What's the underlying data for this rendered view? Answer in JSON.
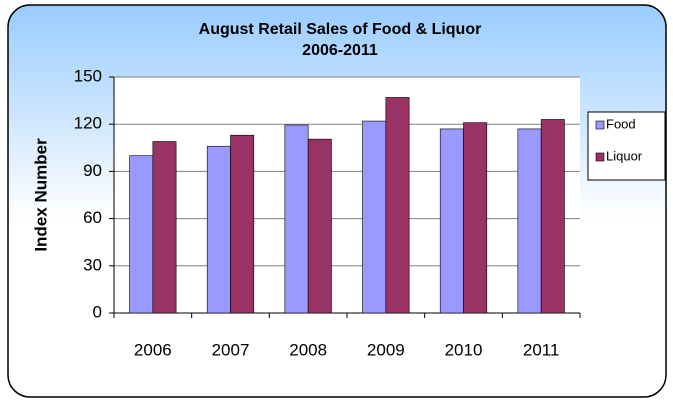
{
  "chart_data": {
    "type": "bar",
    "title": "August Retail Sales of Food & Liquor",
    "subtitle": "2006-2011",
    "y_label": "Index Number",
    "categories": [
      "2006",
      "2007",
      "2008",
      "2009",
      "2010",
      "2011"
    ],
    "series": [
      {
        "name": "Food",
        "color": "#9999ff",
        "values": [
          100,
          106,
          119.5,
          122,
          117,
          117
        ]
      },
      {
        "name": "Liquor",
        "color": "#993366",
        "values": [
          109,
          113,
          110.5,
          137,
          121,
          123
        ]
      }
    ],
    "ylim": [
      0,
      150
    ],
    "yticks": [
      0,
      30,
      60,
      90,
      120,
      150
    ],
    "grid": true,
    "legend": "right"
  }
}
